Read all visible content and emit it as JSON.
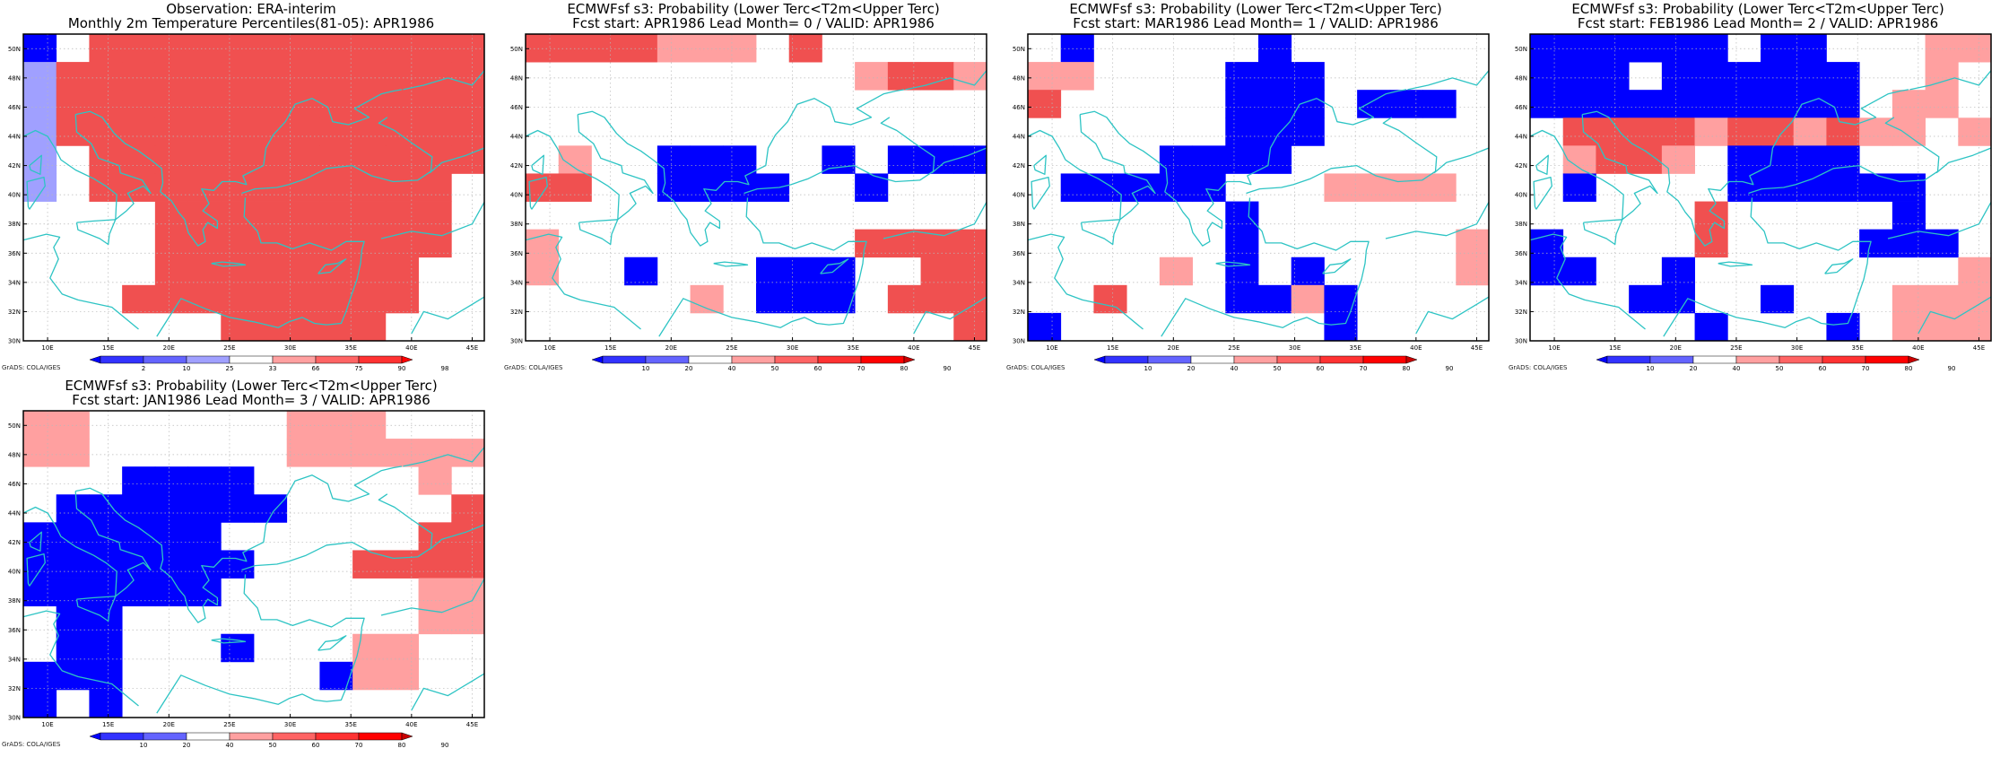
{
  "panels": [
    {
      "title1": "Observation: ERA-interim",
      "title2": "Monthly 2m Temperature Percentiles(81-05): APR1986",
      "legend": {
        "labels": [
          "2",
          "10",
          "25",
          "33",
          "66",
          "75",
          "90",
          "98"
        ],
        "colors": [
          "#0000ff",
          "#3232ff",
          "#6464ff",
          "#a0a0ff",
          "#ffffff",
          "#ffa0a0",
          "#ff6464",
          "#ff3232",
          "#ff0000"
        ]
      },
      "grid": [
        "BWRRRRRRRRRRRR",
        "LRRRRRRRRRRRRR",
        "LRRRRRRRRRRRRR",
        "LRRRRRRRRRRRRR",
        "LWRRRRRRRRRRRR",
        "LWRRRRRRRRRRRW",
        "WWWWRRRRRRRRRW",
        "WWWWRRRRRRRRRW",
        "WWWWRRRRRRRRWW",
        "WWWRRRRRRRRRWW",
        "WWWWWWRRRRRWWW"
      ]
    },
    {
      "title1": "ECMWFsf s3: Probability (Lower Terc<T2m<Upper Terc)",
      "title2": "Fcst start: APR1986  Lead Month= 0 / VALID: APR1986",
      "legend": {
        "labels": [
          "10",
          "20",
          "40",
          "50",
          "60",
          "70",
          "80",
          "90"
        ],
        "colors": [
          "#0000ff",
          "#3232ff",
          "#6464ff",
          "#ffffff",
          "#ffa0a0",
          "#ff6464",
          "#ff3232",
          "#ff0000",
          "#c80000"
        ]
      },
      "grid": [
        "RRRRPPPWRWWWWW",
        "WWWWWWWWWWPRRP",
        "WWWWWWWWWWWWWW",
        "WWWWWWWWWWWWWW",
        "WPWWBBBWWBWBBB",
        "RRWWBBBBWWBWWW",
        "WWWWWWWWWWWWWW",
        "PWWWWWWWWWRRRR",
        "PWWBWWWBBBWWRR",
        "WWWWWPWBBBWRRR",
        "WWWWWWWWWWWWWR"
      ]
    },
    {
      "title1": "ECMWFsf s3: Probability (Lower Terc<T2m<Upper Terc)",
      "title2": "Fcst start: MAR1986  Lead Month= 1 / VALID: APR1986",
      "legend": {
        "labels": [
          "10",
          "20",
          "40",
          "50",
          "60",
          "70",
          "80",
          "90"
        ],
        "colors": [
          "#0000ff",
          "#3232ff",
          "#6464ff",
          "#ffffff",
          "#ffa0a0",
          "#ff6464",
          "#ff3232",
          "#ff0000",
          "#c80000"
        ]
      },
      "grid": [
        "WBWWWWWBWWWWWW",
        "PPWWWWBBBWWWWW",
        "RWWWWWBBBWBBBW",
        "WWWWWWBBBWWWWW",
        "WWWWBBBBWWWWWW",
        "WBBBBBWWWPPPPW",
        "WWWWWWBWWWWWWW",
        "WWWWWWBWWWWWWP",
        "WWWWPWBWBWWWWP",
        "WWRWWWBBPBWWWW",
        "BWWWWWWWWBWWWW"
      ]
    },
    {
      "title1": "ECMWFsf s3: Probability (Lower Terc<T2m<Upper Terc)",
      "title2": "Fcst start: FEB1986  Lead Month= 2 / VALID: APR1986",
      "legend": {
        "labels": [
          "10",
          "20",
          "40",
          "50",
          "60",
          "70",
          "80",
          "90"
        ],
        "colors": [
          "#0000ff",
          "#3232ff",
          "#6464ff",
          "#ffffff",
          "#ffa0a0",
          "#ff6464",
          "#ff3232",
          "#ff0000",
          "#c80000"
        ]
      },
      "grid": [
        "BBBBBBWBBWWWPP",
        "BBBWBBBBBBWWPW",
        "BBBBBBBBBBWPPW",
        "WRRRRPRRPRPPWP",
        "WPRRPWBBBBWWWW",
        "WBWWWWBBBBBBWW",
        "WWWWWRWWWWWBWW",
        "BWWWWRWWWWBBBW",
        "BBWWBWWWWWWWWP",
        "WWWBBWWBWWWPPP",
        "WWWWWBWWWBWPPP"
      ]
    },
    {
      "title1": "ECMWFsf s3: Probability (Lower Terc<T2m<Upper Terc)",
      "title2": "Fcst start: JAN1986  Lead Month= 3 / VALID: APR1986",
      "legend": {
        "labels": [
          "10",
          "20",
          "40",
          "50",
          "60",
          "70",
          "80",
          "90"
        ],
        "colors": [
          "#0000ff",
          "#3232ff",
          "#6464ff",
          "#ffffff",
          "#ffa0a0",
          "#ff6464",
          "#ff3232",
          "#ff0000",
          "#c80000"
        ]
      },
      "grid": [
        "PPWWWWWWPPPWWW",
        "PPWWWWWWPPPPPP",
        "WWWBBBBWWWWWPW",
        "WBBBBBBBWWWWWR",
        "BBBBBBWWWWWWRR",
        "BBBBBBBWWWRRRR",
        "BBBBBBWWWWWWPP",
        "WBBWWWWWWWWWPP",
        "WBBWWWBWWWPPWW",
        "BBBWWWWWWBPPWW",
        "BWBWWWWWWWWWWW"
      ]
    }
  ],
  "axes": {
    "lon_labels": [
      "10E",
      "15E",
      "20E",
      "25E",
      "30E",
      "35E",
      "40E",
      "45E"
    ],
    "lat_labels": [
      "50N",
      "48N",
      "46N",
      "44N",
      "42N",
      "40N",
      "38N",
      "36N",
      "34N",
      "32N",
      "30N"
    ]
  },
  "credit": "GrADS: COLA/IGES",
  "colors": {
    "coast": "#2ec4c4",
    "W": "#ffffff",
    "B": "#0000ff",
    "L": "#a0a0ff",
    "P": "#ffa0a0",
    "R": "#f05050"
  }
}
